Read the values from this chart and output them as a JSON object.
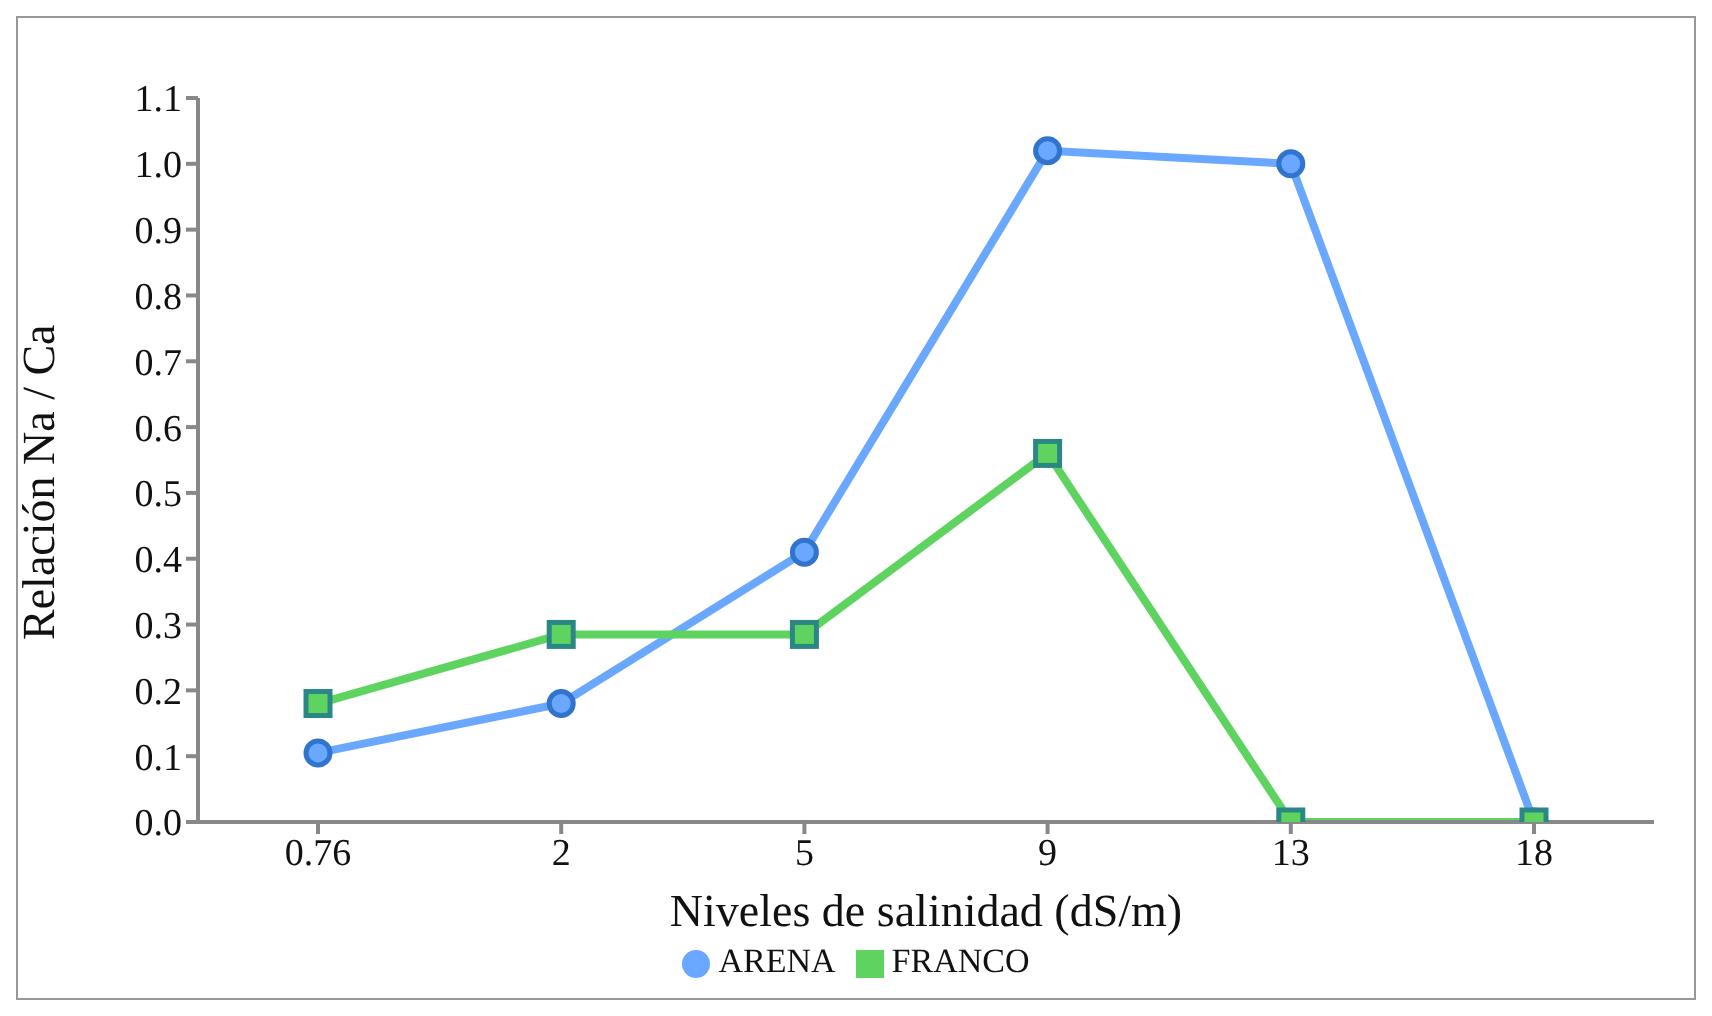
{
  "chart_data": {
    "type": "line",
    "xlabel": "Niveles de salinidad  (dS/m)",
    "ylabel": "Relación Na / Ca",
    "categories": [
      "0.76",
      "2",
      "5",
      "9",
      "13",
      "18"
    ],
    "series": [
      {
        "name": "ARENA",
        "color": "#6aa8ff",
        "marker": "circle",
        "values": [
          0.105,
          0.18,
          0.41,
          1.02,
          1.0,
          0
        ]
      },
      {
        "name": "FRANCO",
        "color": "#5fd35f",
        "marker": "square",
        "values": [
          0.18,
          0.285,
          0.285,
          0.56,
          0,
          0
        ]
      }
    ],
    "ylim": [
      0,
      1.1
    ],
    "yticks": [
      {
        "value": 0,
        "label": "0.0"
      },
      0.1,
      0.2,
      0.3,
      0.4,
      0.5,
      0.6,
      0.7,
      0.8,
      0.9,
      {
        "value": 1,
        "label": "1.0"
      },
      1.1
    ],
    "grid": false,
    "legend": "bottom",
    "line_style": "solid"
  }
}
